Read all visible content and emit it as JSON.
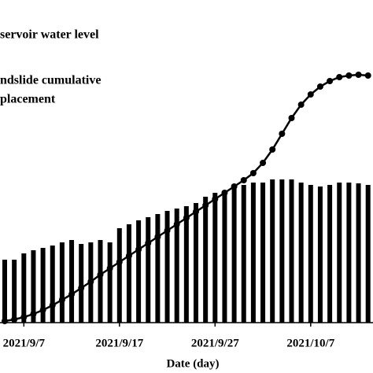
{
  "chart_data": {
    "type": "bar_line",
    "xlabel": "Date (day)",
    "categories": [
      null,
      null,
      "2021/9/7",
      null,
      null,
      null,
      null,
      null,
      null,
      null,
      null,
      null,
      "2021/9/17",
      null,
      null,
      null,
      null,
      null,
      null,
      null,
      null,
      null,
      "2021/9/27",
      null,
      null,
      null,
      null,
      null,
      null,
      null,
      null,
      null,
      "2021/10/7",
      null,
      null,
      null,
      null,
      null,
      null
    ],
    "series": [
      {
        "name": [
          "servoir water level"
        ],
        "color": "#000000",
        "kind": "bar",
        "values": [
          80,
          80,
          88,
          92,
          95,
          98,
          102,
          105,
          100,
          102,
          105,
          102,
          120,
          125,
          130,
          134,
          138,
          142,
          145,
          148,
          152,
          160,
          165,
          168,
          172,
          175,
          178,
          178,
          182,
          182,
          182,
          178,
          175,
          173,
          175,
          178,
          178,
          177,
          175
        ]
      },
      {
        "name": [
          "ndslide cumulative",
          "placement"
        ],
        "color": "#000000",
        "kind": "line",
        "values": [
          2,
          4,
          7,
          11,
          16,
          22,
          29,
          36,
          44,
          52,
          61,
          69,
          77,
          85,
          93,
          101,
          109,
          117,
          125,
          133,
          141,
          149,
          157,
          165,
          173,
          181,
          190,
          203,
          220,
          240,
          260,
          277,
          290,
          300,
          307,
          312,
          314,
          315,
          314
        ]
      }
    ]
  }
}
